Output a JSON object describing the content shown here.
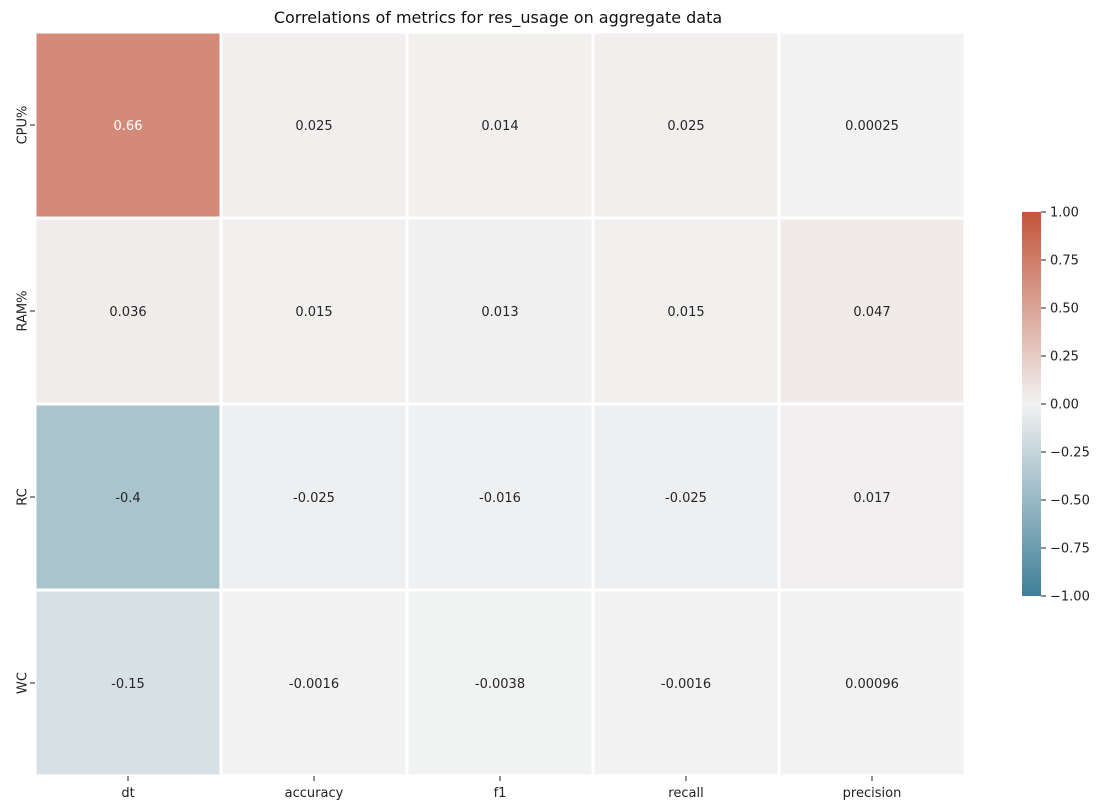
{
  "chart_data": {
    "type": "heatmap",
    "title": "Correlations of metrics for res_usage on aggregate data",
    "rows": [
      "CPU%",
      "RAM%",
      "RC",
      "WC"
    ],
    "columns": [
      "dt",
      "accuracy",
      "f1",
      "recall",
      "precision"
    ],
    "values": [
      [
        0.66,
        0.025,
        0.014,
        0.025,
        0.00025
      ],
      [
        0.036,
        0.015,
        0.013,
        0.015,
        0.047
      ],
      [
        -0.4,
        -0.025,
        -0.016,
        -0.025,
        0.017
      ],
      [
        -0.15,
        -0.0016,
        -0.0038,
        -0.0016,
        0.00096
      ]
    ],
    "value_labels": [
      [
        "0.66",
        "0.025",
        "0.014",
        "0.025",
        "0.00025"
      ],
      [
        "0.036",
        "0.015",
        "0.013",
        "0.015",
        "0.047"
      ],
      [
        "-0.4",
        "-0.025",
        "-0.016",
        "-0.025",
        "0.017"
      ],
      [
        "-0.15",
        "-0.0016",
        "-0.0038",
        "-0.0016",
        "0.00096"
      ]
    ],
    "colorbar": {
      "range": [
        -1.0,
        1.0
      ],
      "ticks": [
        "1.00",
        "0.75",
        "0.50",
        "0.25",
        "0.00",
        "−0.25",
        "−0.50",
        "−0.75",
        "−1.00"
      ],
      "tick_values": [
        1.0,
        0.75,
        0.5,
        0.25,
        0.0,
        -0.25,
        -0.5,
        -0.75,
        -1.0
      ],
      "colors": {
        "negative": "#3f7f98",
        "neutral": "#f2f2f2",
        "positive": "#c3553a"
      }
    }
  }
}
